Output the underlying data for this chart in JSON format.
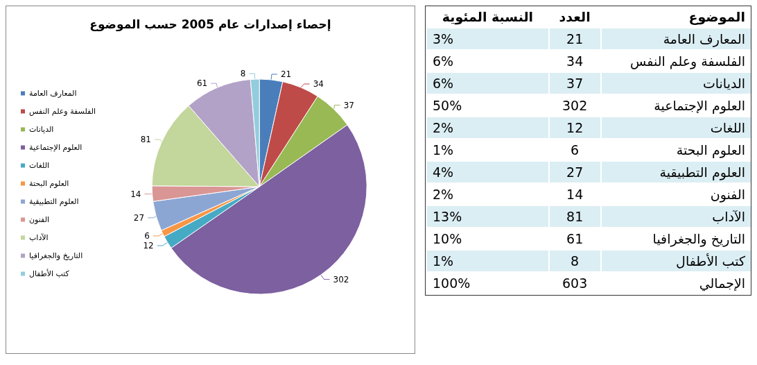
{
  "chart_data": [
    {
      "type": "pie",
      "title": "إحصاء إصدارات عام 2005 حسب الموضوع",
      "categories": [
        "المعارف العامة",
        "الفلسفة وعلم النفس",
        "الديانات",
        "العلوم الإجتماعية",
        "اللغات",
        "العلوم البحتة",
        "العلوم التطبيقية",
        "الفنون",
        "الآداب",
        "التاريخ والجغرافيا",
        "كتب الأطفال"
      ],
      "values": [
        21,
        34,
        37,
        302,
        12,
        6,
        27,
        14,
        81,
        61,
        8
      ],
      "colors": [
        "#4a7ebb",
        "#be4b48",
        "#98b954",
        "#7d60a0",
        "#46aac5",
        "#f79646",
        "#8ca6d4",
        "#d99694",
        "#c3d69b",
        "#b3a2c7",
        "#93cddd"
      ],
      "data_labels": true,
      "legend": "left"
    },
    {
      "type": "other",
      "xlabel": "الموضوع",
      "data_labels": true,
      "categories": [
        "المعارف العامة",
        "الفلسفة وعلم النفس",
        "الديانات",
        "العلوم الإجتماعية",
        "اللغات",
        "العلوم البحتة",
        "العلوم التطبيقية",
        "الفنون",
        "الآداب",
        "التاريخ والجغرافيا",
        "كتب الأطفال",
        "الإجمالي"
      ],
      "series": [
        {
          "name": "العدد",
          "values": [
            21,
            34,
            37,
            302,
            12,
            6,
            27,
            14,
            81,
            61,
            8,
            603
          ],
          "colors": [
            "#dbeef4",
            "#ffffff",
            "#dbeef4",
            "#ffffff",
            "#dbeef4",
            "#ffffff",
            "#dbeef4",
            "#ffffff",
            "#dbeef4",
            "#ffffff",
            "#dbeef4",
            "#ffffff"
          ]
        },
        {
          "name": "النسبة المئوية",
          "values": [
            3,
            6,
            6,
            50,
            2,
            1,
            4,
            2,
            13,
            10,
            1,
            100
          ],
          "value_labels": [
            "3%",
            "6%",
            "6%",
            "50%",
            "2%",
            "1%",
            "4%",
            "2%",
            "13%",
            "10%",
            "1%",
            "100%"
          ],
          "colors": [
            "#dbeef4",
            "#ffffff",
            "#dbeef4",
            "#ffffff",
            "#dbeef4",
            "#ffffff",
            "#dbeef4",
            "#ffffff",
            "#dbeef4",
            "#ffffff",
            "#dbeef4",
            "#ffffff"
          ]
        }
      ]
    }
  ]
}
